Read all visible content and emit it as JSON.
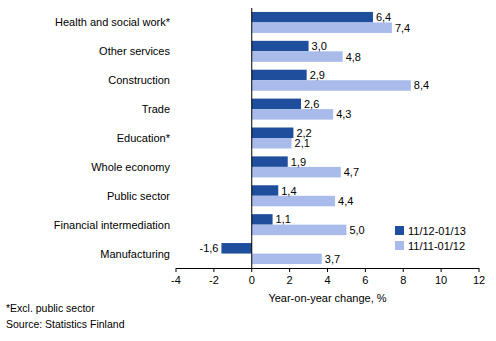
{
  "chart_data": {
    "type": "bar",
    "orientation": "horizontal",
    "categories": [
      "Health and social work*",
      "Other services",
      "Construction",
      "Trade",
      "Education*",
      "Whole economy",
      "Public sector",
      "Financial intermediation",
      "Manufacturing"
    ],
    "series": [
      {
        "name": "11/12-01/13",
        "color": "#1f4e9c",
        "values": [
          6.4,
          3.0,
          2.9,
          2.6,
          2.2,
          1.9,
          1.4,
          1.1,
          -1.6
        ],
        "value_labels": [
          "6,4",
          "3,0",
          "2,9",
          "2,6",
          "2,2",
          "1,9",
          "1,4",
          "1,1",
          "-1,6"
        ]
      },
      {
        "name": "11/11-01/12",
        "color": "#a8bbea",
        "values": [
          7.4,
          4.8,
          8.4,
          4.3,
          2.1,
          4.7,
          4.4,
          5.0,
          3.7
        ],
        "value_labels": [
          "7,4",
          "4,8",
          "8,4",
          "4,3",
          "2,1",
          "4,7",
          "4,4",
          "5,0",
          "3,7"
        ]
      }
    ],
    "xlim": [
      -4,
      12
    ],
    "xticks": [
      -4,
      -2,
      0,
      2,
      4,
      6,
      8,
      10,
      12
    ],
    "x_label": "Year-on-year change, %",
    "grid": false,
    "data_labels": true,
    "legend": "lower right",
    "notes": [
      "*Excl. public sector",
      "Source: Statistics Finland"
    ]
  }
}
